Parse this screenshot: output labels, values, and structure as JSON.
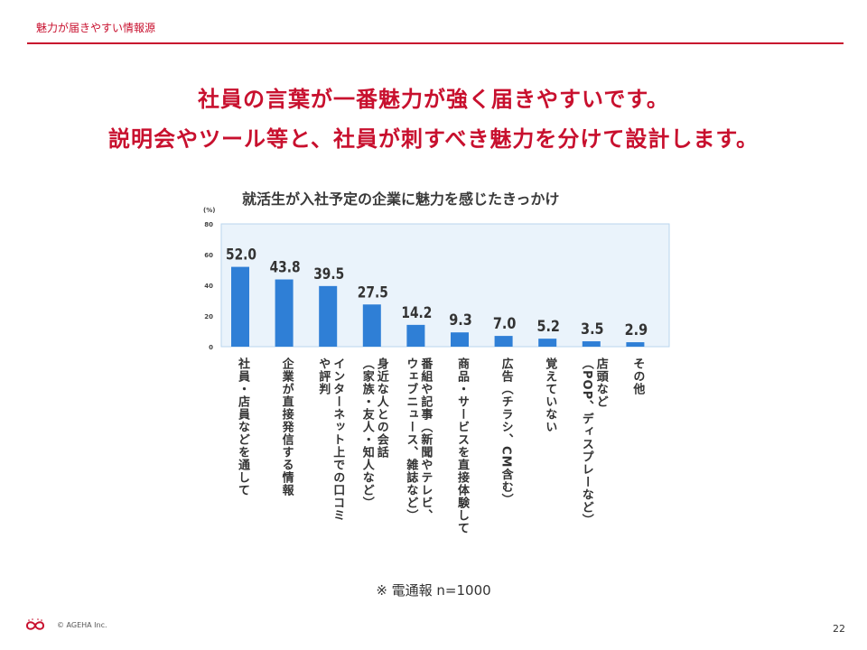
{
  "header": {
    "section_label": "魅力が届きやすい情報源"
  },
  "headline": {
    "line1": "社員の言葉が一番魅力が強く届きやすいです。",
    "line2": "説明会やツール等と、社員が刺すべき魅力を分けて設計します。"
  },
  "chart_data": {
    "type": "bar",
    "title": "就活生が入社予定の企業に魅力を感じたきっかけ",
    "ylabel": "(%)",
    "ylim": [
      0,
      80
    ],
    "yticks": [
      0,
      20,
      40,
      60,
      80
    ],
    "grid": false,
    "categories": [
      "社員・店員などを通して",
      "企業が直接発信する情報",
      "インターネット上での口コミ\nや評判",
      "身近な人との会話\n（家族・友人・知人など）",
      "番組や記事（新聞やテレビ、\nウェブニュース、雑誌など）",
      "商品・サービスを直接体験して",
      "広告（チラシ、CM含む）",
      "覚えていない",
      "店頭など\n（POP、ディスプレーなど）",
      "その他"
    ],
    "values": [
      52.0,
      43.8,
      39.5,
      27.5,
      14.2,
      9.3,
      7.0,
      5.2,
      3.5,
      2.9
    ],
    "value_labels": [
      "52.0",
      "43.8",
      "39.5",
      "27.5",
      "14.2",
      "9.3",
      "7.0",
      "5.2",
      "3.5",
      "2.9"
    ],
    "bar_color": "#2f7fd6",
    "plot_background": "#eaf3fb",
    "plot_border": "#b9d6ee"
  },
  "note": "※  電通報 n=1000",
  "footer": {
    "copyright": "© AGEHA Inc.",
    "page_number": "22"
  },
  "colors": {
    "accent": "#c8102e"
  }
}
